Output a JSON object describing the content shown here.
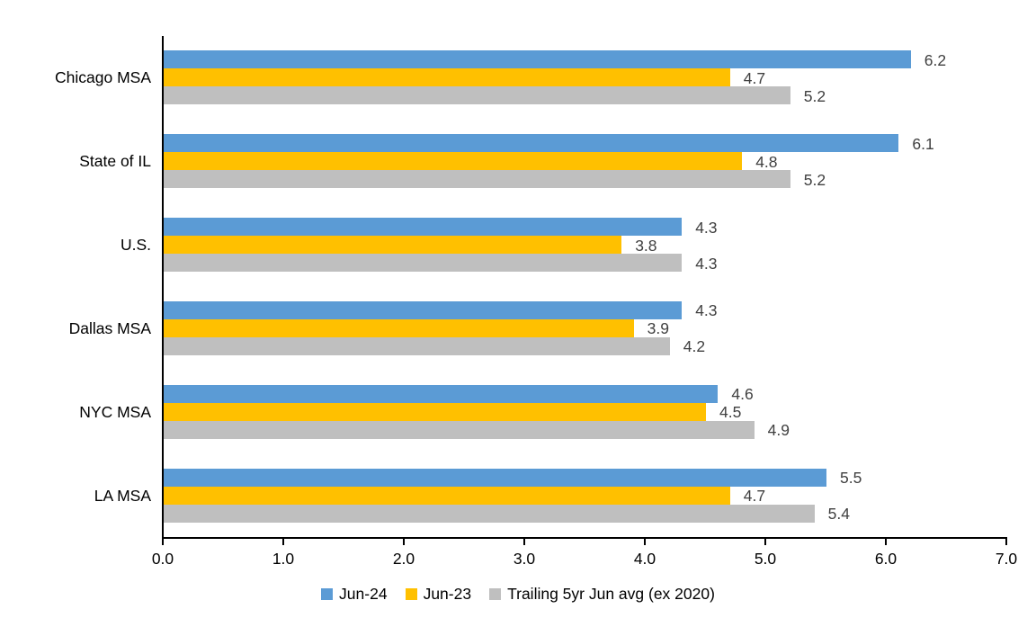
{
  "chart_data": {
    "type": "bar",
    "orientation": "horizontal",
    "title": "",
    "categories": [
      "Chicago MSA",
      "State of IL",
      "U.S.",
      "Dallas MSA",
      "NYC MSA",
      "LA MSA"
    ],
    "series": [
      {
        "name": "Jun-24",
        "color": "#5B9BD5",
        "values": [
          6.2,
          6.1,
          4.3,
          4.3,
          4.6,
          5.5
        ]
      },
      {
        "name": "Jun-23",
        "color": "#FFC000",
        "values": [
          4.7,
          4.8,
          3.8,
          3.9,
          4.5,
          4.7
        ]
      },
      {
        "name": "Trailing 5yr Jun avg (ex 2020)",
        "color": "#BFBFBF",
        "values": [
          5.2,
          5.2,
          4.3,
          4.2,
          4.9,
          5.4
        ]
      }
    ],
    "x_axis": {
      "min": 0,
      "max": 7,
      "tick_interval": 1,
      "tick_labels": [
        "0.0",
        "1.0",
        "2.0",
        "3.0",
        "4.0",
        "5.0",
        "6.0",
        "7.0"
      ]
    },
    "data_labels": true,
    "data_label_color": "#404040",
    "axis_color": "#000000",
    "grid": false,
    "legend_position": "bottom"
  }
}
